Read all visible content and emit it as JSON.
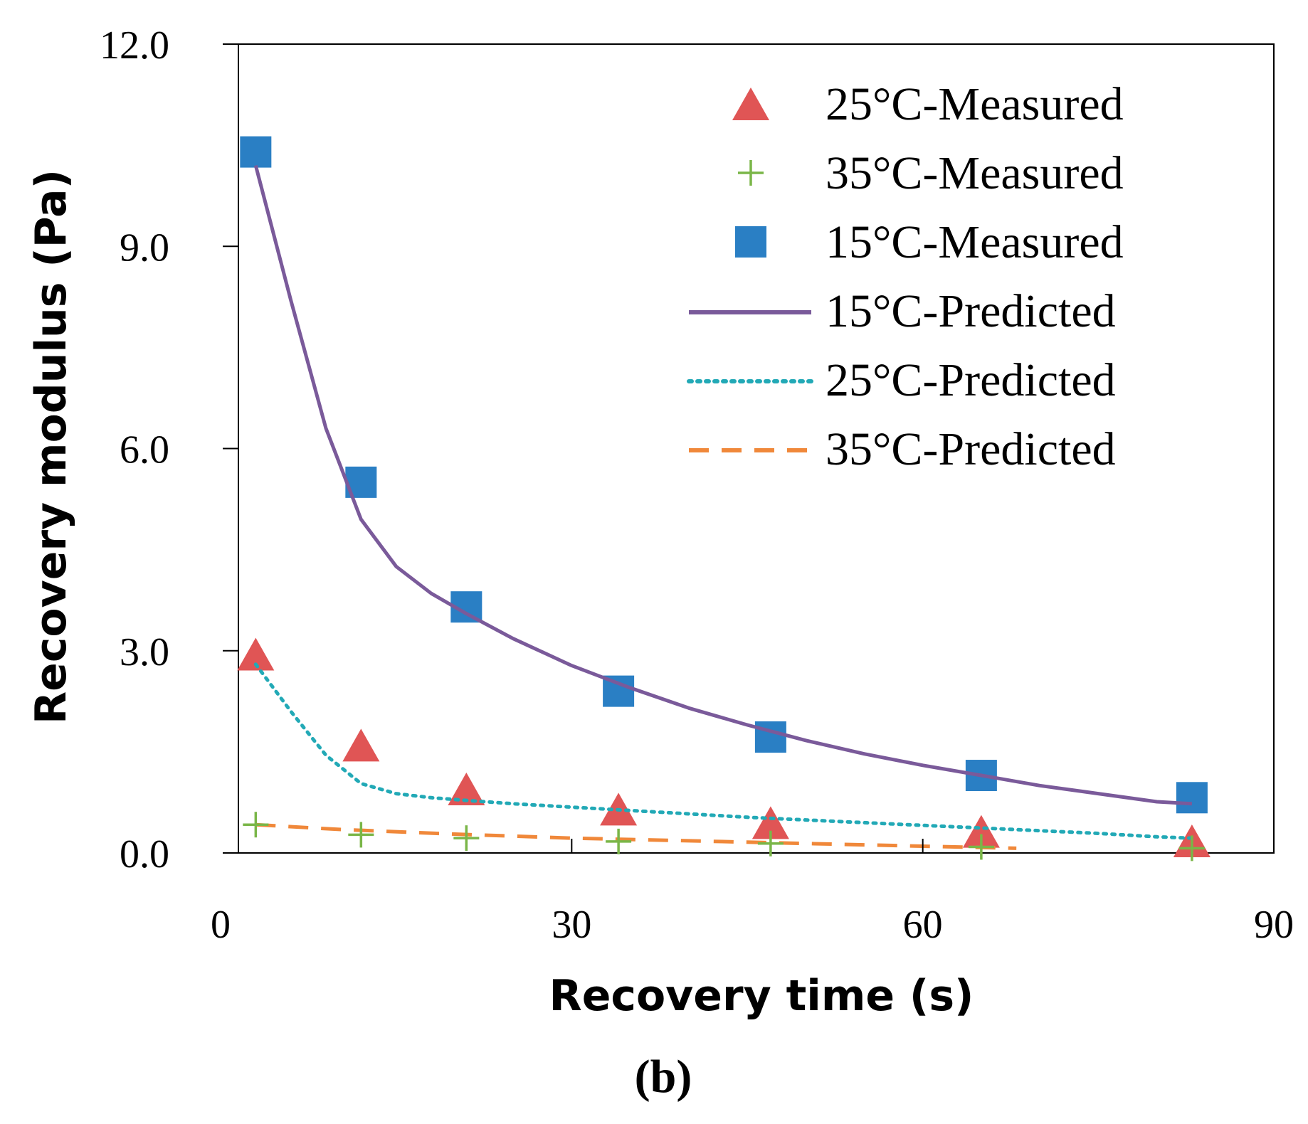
{
  "chart_data": {
    "type": "scatter",
    "xlabel": "Recovery time (s)",
    "ylabel": "Recovery modulus (Pa)",
    "caption": "(b)",
    "xlim": [
      0,
      90
    ],
    "ylim": [
      0,
      12
    ],
    "xticks": [
      0,
      30,
      60,
      90
    ],
    "yticks": [
      0,
      3,
      6,
      9,
      12
    ],
    "xtick_labels": [
      "0",
      "30",
      "60",
      "90"
    ],
    "ytick_labels": [
      "0.0",
      "3.0",
      "6.0",
      "9.0",
      "12.0"
    ],
    "grid": false,
    "legend_position": "top-right",
    "colors": {
      "m25": "#e05555",
      "m35": "#7ab648",
      "m15": "#2a7fc4",
      "p15": "#7a5a9a",
      "p25": "#22a9b6",
      "p35": "#f0883a"
    },
    "series": [
      {
        "key": "m25",
        "name": "25°C-Measured",
        "kind": "triangle",
        "x": [
          3,
          12,
          21,
          34,
          47,
          65,
          83
        ],
        "y": [
          2.95,
          1.6,
          0.95,
          0.65,
          0.45,
          0.32,
          0.18
        ]
      },
      {
        "key": "m35",
        "name": "35°C-Measured",
        "kind": "plus",
        "x": [
          3,
          12,
          21,
          34,
          47,
          65,
          83
        ],
        "y": [
          0.42,
          0.27,
          0.22,
          0.17,
          0.14,
          0.09,
          0.07
        ]
      },
      {
        "key": "m15",
        "name": "15°C-Measured",
        "kind": "square",
        "x": [
          3,
          12,
          21,
          34,
          47,
          65,
          83
        ],
        "y": [
          10.4,
          5.5,
          3.65,
          2.4,
          1.72,
          1.15,
          0.82
        ]
      },
      {
        "key": "p15",
        "name": "15°C-Predicted",
        "kind": "line",
        "dash": "solid",
        "x": [
          3,
          6,
          9,
          12,
          15,
          18,
          21,
          25,
          30,
          35,
          40,
          45,
          50,
          55,
          60,
          65,
          70,
          75,
          80,
          83
        ],
        "y": [
          10.2,
          8.2,
          6.3,
          4.95,
          4.25,
          3.85,
          3.55,
          3.18,
          2.78,
          2.45,
          2.15,
          1.9,
          1.67,
          1.47,
          1.3,
          1.15,
          1.0,
          0.88,
          0.76,
          0.73
        ]
      },
      {
        "key": "p25",
        "name": "25°C-Predicted",
        "kind": "line",
        "dash": "dotted",
        "x": [
          3,
          6,
          9,
          12,
          15,
          18,
          21,
          25,
          30,
          35,
          40,
          45,
          50,
          55,
          60,
          65,
          70,
          75,
          80,
          83
        ],
        "y": [
          2.8,
          2.1,
          1.45,
          1.03,
          0.88,
          0.82,
          0.78,
          0.73,
          0.68,
          0.63,
          0.58,
          0.53,
          0.49,
          0.45,
          0.41,
          0.37,
          0.33,
          0.29,
          0.24,
          0.22
        ]
      },
      {
        "key": "p35",
        "name": "35°C-Predicted",
        "kind": "line",
        "dash": "dashed",
        "x": [
          3,
          10,
          20,
          30,
          40,
          50,
          60,
          68
        ],
        "y": [
          0.42,
          0.35,
          0.28,
          0.22,
          0.18,
          0.14,
          0.1,
          0.07
        ]
      }
    ]
  }
}
